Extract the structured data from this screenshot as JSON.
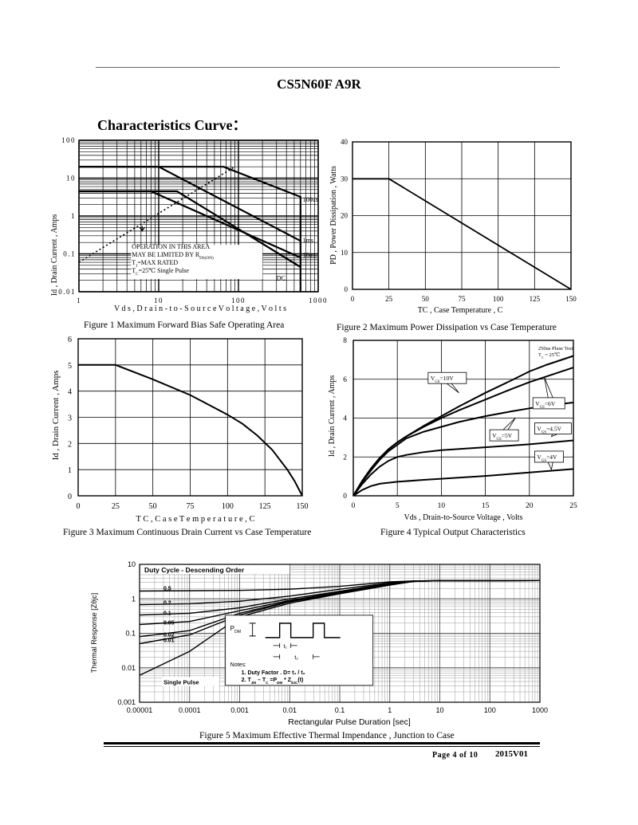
{
  "header": {
    "title": "CS5N60F A9R",
    "section": "Characteristics Curve："
  },
  "footer": {
    "page": "Page 4 of 10",
    "revision": "2015V01"
  },
  "captions": {
    "fig1": "Figure    1    Maximum Forward Bias Safe Operating Area",
    "fig2": "Figure    2    Maximum Power Dissipation vs Case Temperature",
    "fig3": "Figure    3    Maximum Continuous Drain Current vs Case Temperature",
    "fig4": "Figure    4    Typical Output Characteristics",
    "fig5": "Figure    5    Maximum Effective Thermal Impendance , Junction to Case"
  },
  "chart_data": [
    {
      "type": "line",
      "xscale": "log",
      "yscale": "log",
      "xlim": [
        1,
        1000
      ],
      "ylim": [
        0.01,
        100
      ],
      "xticks": [
        "1",
        "10",
        "100",
        "1000"
      ],
      "yticks": [
        "0.01",
        "0.1",
        "1",
        "10",
        "100"
      ],
      "xlabel": "V d s ,  D r a i n - t o - S o u r c e  V o l t a g e ,  V o l t s",
      "ylabel": "Id , Drain Current , Amps",
      "series": [
        {
          "name": "100us",
          "x": [
            1,
            65,
            600,
            600
          ],
          "y": [
            20,
            20,
            3.2,
            0.01
          ]
        },
        {
          "name": "1ms",
          "x": [
            1,
            10,
            600
          ],
          "y": [
            20,
            20,
            0.22
          ]
        },
        {
          "name": "10ms",
          "x": [
            1,
            8,
            600
          ],
          "y": [
            4.5,
            4.5,
            0.08
          ]
        },
        {
          "name": "DC",
          "x": [
            1,
            17,
            600
          ],
          "y": [
            4.5,
            4.5,
            0.045
          ]
        },
        {
          "name": "RDS(ON) limit",
          "x": [
            1,
            90
          ],
          "y": [
            0.06,
            20
          ]
        }
      ],
      "annotations": [
        "100us",
        "1ms",
        "10ms",
        "DC",
        "OPERATION IN THIS AREA",
        "MAY BE LIMITED BY R",
        "DS(ON)",
        "T",
        "J",
        "=MAX RATED",
        "T",
        "C",
        "=25℃  Single Pulse"
      ]
    },
    {
      "type": "line",
      "xlim": [
        0,
        150
      ],
      "ylim": [
        0,
        40
      ],
      "xticks": [
        "0",
        "25",
        "50",
        "75",
        "100",
        "125",
        "150"
      ],
      "yticks": [
        "0",
        "10",
        "20",
        "30",
        "40"
      ],
      "xlabel": "TC , Case Temperature , C",
      "ylabel": "PD , Power Dissipation ,  Watts",
      "series": [
        {
          "x": [
            0,
            25,
            150
          ],
          "y": [
            30,
            30,
            0
          ]
        }
      ]
    },
    {
      "type": "line",
      "xlim": [
        0,
        150
      ],
      "ylim": [
        0,
        6
      ],
      "xticks": [
        "0",
        "25",
        "50",
        "75",
        "100",
        "125",
        "150"
      ],
      "yticks": [
        "0",
        "1",
        "2",
        "3",
        "4",
        "5",
        "6"
      ],
      "xlabel": "T C ,  C a s e  T e m p e r a t u r e ,  C",
      "ylabel": "Id , Drain Current , Amps",
      "series": [
        {
          "x": [
            0,
            25,
            50,
            75,
            100,
            110,
            120,
            130,
            140,
            145,
            150
          ],
          "y": [
            5,
            5,
            4.45,
            3.85,
            3.1,
            2.75,
            2.3,
            1.75,
            1.0,
            0.55,
            0
          ]
        }
      ]
    },
    {
      "type": "line",
      "xlim": [
        0,
        25
      ],
      "ylim": [
        0,
        8
      ],
      "xticks": [
        "0",
        "5",
        "10",
        "15",
        "20",
        "25"
      ],
      "yticks": [
        "0",
        "2",
        "4",
        "6",
        "8"
      ],
      "xlabel": "Vds , Drain-to-Source Voltage , Volts",
      "ylabel": "Id , Drain Current , Amps",
      "annotation": [
        "250us Pluse Test",
        "T",
        "C",
        " = 25℃"
      ],
      "series": [
        {
          "name": "VGS=10V",
          "label": [
            "V",
            "GS",
            "=10V"
          ],
          "x": [
            0,
            1,
            2,
            3,
            4,
            5,
            6,
            8,
            10,
            12,
            15,
            18,
            20,
            22,
            25
          ],
          "y": [
            0,
            0.75,
            1.4,
            1.95,
            2.4,
            2.75,
            3.05,
            3.6,
            4.1,
            4.6,
            5.3,
            5.95,
            6.4,
            6.75,
            7.2
          ]
        },
        {
          "name": "VGS=6V",
          "label": [
            "V",
            "GS",
            "=6V"
          ],
          "x": [
            0,
            1,
            2,
            3,
            4,
            5,
            6,
            8,
            10,
            12,
            15,
            18,
            20,
            22,
            25
          ],
          "y": [
            0,
            0.75,
            1.4,
            1.95,
            2.4,
            2.75,
            3.05,
            3.55,
            4.0,
            4.4,
            4.95,
            5.5,
            5.85,
            6.15,
            6.6
          ]
        },
        {
          "name": "VGS=5V",
          "label": [
            "V",
            "GS",
            "=5V"
          ],
          "x": [
            0,
            1,
            2,
            3,
            4,
            6,
            8,
            10,
            12,
            15,
            18,
            20,
            22,
            25
          ],
          "y": [
            0,
            0.7,
            1.3,
            1.85,
            2.3,
            2.95,
            3.3,
            3.55,
            3.8,
            4.1,
            4.35,
            4.5,
            4.65,
            4.8
          ]
        },
        {
          "name": "VGS=4.5V",
          "label": [
            "V",
            "GS",
            "=4.5V"
          ],
          "x": [
            0,
            1,
            2,
            3,
            4,
            5,
            6,
            8,
            10,
            15,
            20,
            25
          ],
          "y": [
            0,
            0.6,
            1.1,
            1.5,
            1.8,
            2.0,
            2.1,
            2.25,
            2.35,
            2.5,
            2.65,
            2.85
          ]
        },
        {
          "name": "VGS=4V",
          "label": [
            "V",
            "GS",
            "=4V"
          ],
          "x": [
            0,
            1,
            2,
            3,
            5,
            8,
            10,
            15,
            20,
            25
          ],
          "y": [
            0,
            0.3,
            0.5,
            0.62,
            0.72,
            0.82,
            0.88,
            1.02,
            1.2,
            1.38
          ]
        }
      ]
    },
    {
      "type": "line",
      "xscale": "log",
      "yscale": "log",
      "xlim": [
        1e-05,
        1000
      ],
      "ylim": [
        0.001,
        10
      ],
      "xticks": [
        "0.00001",
        "0.0001",
        "0.001",
        "0.01",
        "0.1",
        "1",
        "10",
        "100",
        "1000"
      ],
      "yticks": [
        "0.001",
        "0.01",
        "0.1",
        "1",
        "10"
      ],
      "xlabel": "Rectangular Pulse Duration [sec]",
      "ylabel": "Thermal Response  [Zθjc]",
      "legend_title": "Duty Cycle - Descending Order",
      "series": [
        {
          "name": "0.5",
          "x": [
            1e-05,
            0.001,
            0.01,
            0.1,
            1,
            3,
            10,
            1000
          ],
          "y": [
            1.68,
            1.75,
            1.9,
            2.3,
            3.1,
            3.3,
            3.35,
            3.4
          ]
        },
        {
          "name": "0.2",
          "x": [
            1e-05,
            0.0001,
            0.001,
            0.01,
            0.1,
            1,
            3,
            10,
            1000
          ],
          "y": [
            0.68,
            0.72,
            0.85,
            1.2,
            1.9,
            2.9,
            3.3,
            3.35,
            3.4
          ]
        },
        {
          "name": "0.1",
          "x": [
            1e-05,
            0.0001,
            0.001,
            0.01,
            0.1,
            1,
            3,
            10,
            1000
          ],
          "y": [
            0.34,
            0.38,
            0.55,
            1.0,
            1.65,
            2.8,
            3.3,
            3.35,
            3.4
          ]
        },
        {
          "name": "0.05",
          "x": [
            1e-05,
            0.0001,
            0.001,
            0.01,
            0.1,
            1,
            3,
            10,
            1000
          ],
          "y": [
            0.18,
            0.22,
            0.45,
            0.9,
            1.55,
            2.7,
            3.25,
            3.35,
            3.4
          ]
        },
        {
          "name": "0.02",
          "x": [
            1e-05,
            0.0001,
            0.001,
            0.01,
            0.1,
            1,
            3,
            10,
            1000
          ],
          "y": [
            0.08,
            0.12,
            0.38,
            0.85,
            1.5,
            2.6,
            3.2,
            3.35,
            3.4
          ]
        },
        {
          "name": "0.01",
          "x": [
            1e-05,
            0.0001,
            0.001,
            0.01,
            0.1,
            1,
            3,
            10,
            1000
          ],
          "y": [
            0.05,
            0.09,
            0.34,
            0.82,
            1.45,
            2.55,
            3.2,
            3.35,
            3.4
          ]
        },
        {
          "name": "Single Pulse",
          "x": [
            1e-05,
            0.0001,
            0.001,
            0.01,
            0.1,
            1,
            3,
            10,
            1000
          ],
          "y": [
            0.006,
            0.03,
            0.3,
            0.75,
            1.4,
            2.5,
            3.2,
            3.35,
            3.4
          ]
        }
      ],
      "inset": {
        "pdm": [
          "P",
          "DM"
        ],
        "t1": "t₁",
        "t2": "t₂",
        "notes": "Notes:",
        "note1": "1. Duty Factor .  D= t₁ / t₂",
        "note2": [
          "2. T",
          "JM",
          " – T",
          "C",
          "  =P",
          "DM",
          " * Z",
          "θJC",
          "(t)"
        ]
      }
    }
  ]
}
